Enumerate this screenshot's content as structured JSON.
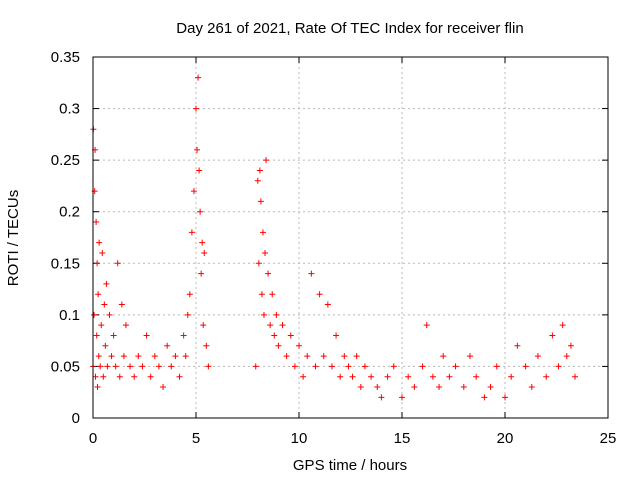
{
  "chart_data": {
    "type": "scatter",
    "title": "Day 261 of 2021, Rate Of TEC Index for receiver flin",
    "xlabel": "GPS time / hours",
    "ylabel": "ROTI / TECUs",
    "xlim": [
      0,
      25
    ],
    "ylim": [
      0,
      0.35
    ],
    "grid": true,
    "marker": "+",
    "color": "#ff0000",
    "x_ticks": [
      0,
      5,
      10,
      15,
      20,
      25
    ],
    "x_tick_labels": [
      "0",
      "5",
      "10",
      "15",
      "20",
      "25"
    ],
    "y_ticks": [
      0,
      0.05,
      0.1,
      0.15,
      0.2,
      0.25,
      0.3,
      0.35
    ],
    "y_tick_labels": [
      "0",
      "0.05",
      "0.1",
      "0.15",
      "0.2",
      "0.25",
      "0.3",
      "0.35"
    ],
    "series": [
      {
        "name": "ROTI",
        "x": [
          0.0,
          0.02,
          0.05,
          0.08,
          0.1,
          0.12,
          0.15,
          0.18,
          0.2,
          0.22,
          0.25,
          0.28,
          0.3,
          0.35,
          0.4,
          0.45,
          0.5,
          0.55,
          0.6,
          0.65,
          0.7,
          0.8,
          0.9,
          1.0,
          1.1,
          1.2,
          1.3,
          1.4,
          1.5,
          1.6,
          1.8,
          2.0,
          2.2,
          2.4,
          2.6,
          2.8,
          3.0,
          3.2,
          3.4,
          3.6,
          3.8,
          4.0,
          4.2,
          4.4,
          4.5,
          4.6,
          4.7,
          4.8,
          4.9,
          5.0,
          5.05,
          5.1,
          5.15,
          5.2,
          5.25,
          5.3,
          5.35,
          5.4,
          5.5,
          5.6,
          7.9,
          8.0,
          8.05,
          8.1,
          8.15,
          8.2,
          8.25,
          8.3,
          8.35,
          8.4,
          8.5,
          8.6,
          8.7,
          8.8,
          8.9,
          9.0,
          9.2,
          9.4,
          9.6,
          9.8,
          10.0,
          10.2,
          10.4,
          10.6,
          10.8,
          11.0,
          11.2,
          11.4,
          11.6,
          11.8,
          12.0,
          12.2,
          12.4,
          12.6,
          12.8,
          13.0,
          13.2,
          13.5,
          13.8,
          14.0,
          14.3,
          14.6,
          15.0,
          15.3,
          15.6,
          16.0,
          16.2,
          16.5,
          16.8,
          17.0,
          17.3,
          17.6,
          18.0,
          18.3,
          18.6,
          19.0,
          19.3,
          19.6,
          20.0,
          20.3,
          20.6,
          21.0,
          21.3,
          21.6,
          22.0,
          22.3,
          22.6,
          22.8,
          23.0,
          23.2,
          23.4
        ],
        "y": [
          0.05,
          0.28,
          0.1,
          0.22,
          0.26,
          0.04,
          0.19,
          0.08,
          0.15,
          0.03,
          0.12,
          0.06,
          0.17,
          0.05,
          0.09,
          0.16,
          0.04,
          0.11,
          0.07,
          0.13,
          0.05,
          0.1,
          0.06,
          0.08,
          0.05,
          0.15,
          0.04,
          0.11,
          0.06,
          0.09,
          0.05,
          0.04,
          0.06,
          0.05,
          0.08,
          0.04,
          0.06,
          0.05,
          0.03,
          0.07,
          0.05,
          0.06,
          0.04,
          0.08,
          0.06,
          0.1,
          0.12,
          0.18,
          0.22,
          0.3,
          0.26,
          0.33,
          0.24,
          0.2,
          0.14,
          0.17,
          0.09,
          0.16,
          0.07,
          0.05,
          0.05,
          0.23,
          0.15,
          0.24,
          0.21,
          0.12,
          0.18,
          0.1,
          0.16,
          0.25,
          0.14,
          0.09,
          0.12,
          0.08,
          0.1,
          0.07,
          0.09,
          0.06,
          0.08,
          0.05,
          0.07,
          0.04,
          0.06,
          0.14,
          0.05,
          0.12,
          0.06,
          0.11,
          0.05,
          0.08,
          0.04,
          0.06,
          0.05,
          0.04,
          0.06,
          0.03,
          0.05,
          0.04,
          0.03,
          0.02,
          0.04,
          0.05,
          0.02,
          0.04,
          0.03,
          0.05,
          0.09,
          0.04,
          0.03,
          0.06,
          0.04,
          0.05,
          0.03,
          0.06,
          0.04,
          0.02,
          0.03,
          0.05,
          0.02,
          0.04,
          0.07,
          0.05,
          0.03,
          0.06,
          0.04,
          0.08,
          0.05,
          0.09,
          0.06,
          0.07,
          0.04
        ]
      }
    ]
  }
}
